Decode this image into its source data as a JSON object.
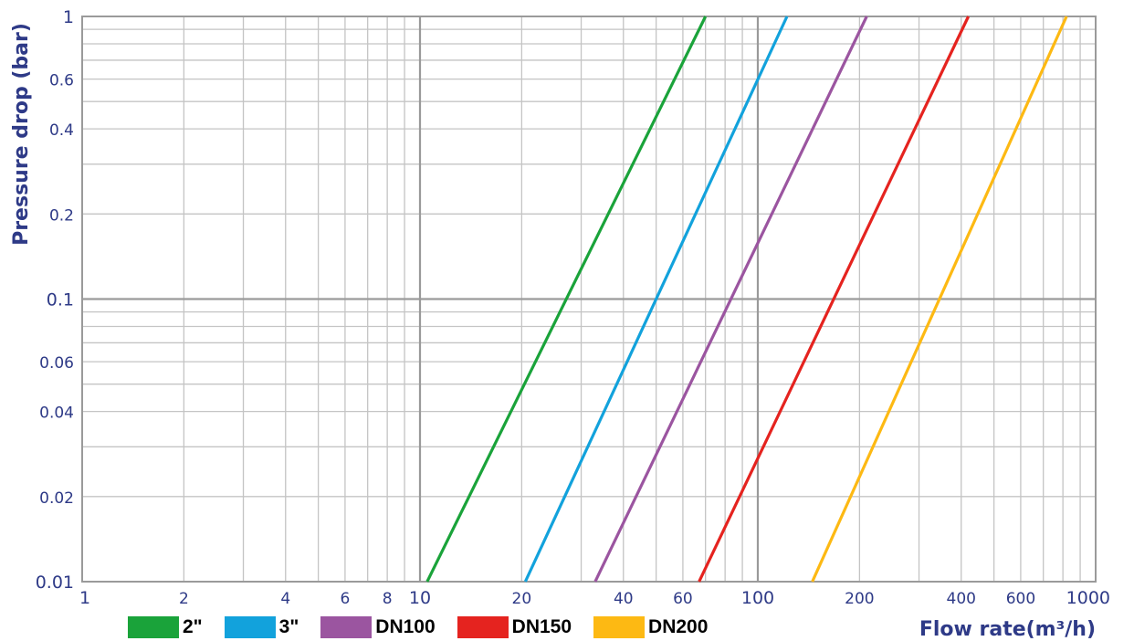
{
  "chart_data": {
    "type": "line",
    "xscale": "log",
    "yscale": "log",
    "xlim": [
      1,
      1000
    ],
    "ylim": [
      0.01,
      1
    ],
    "grid": true,
    "xlabel": "Flow rate(m³/h)",
    "ylabel": "Pressure drop (bar)",
    "x_tick_labels": [
      {
        "value": 1,
        "label": "1",
        "major": true
      },
      {
        "value": 2,
        "label": "2",
        "major": false
      },
      {
        "value": 4,
        "label": "4",
        "major": false
      },
      {
        "value": 6,
        "label": "6",
        "major": false
      },
      {
        "value": 8,
        "label": "8",
        "major": false
      },
      {
        "value": 10,
        "label": "10",
        "major": true
      },
      {
        "value": 20,
        "label": "20",
        "major": false
      },
      {
        "value": 40,
        "label": "40",
        "major": false
      },
      {
        "value": 60,
        "label": "60",
        "major": false
      },
      {
        "value": 100,
        "label": "100",
        "major": true
      },
      {
        "value": 200,
        "label": "200",
        "major": false
      },
      {
        "value": 400,
        "label": "400",
        "major": false
      },
      {
        "value": 600,
        "label": "600",
        "major": false
      },
      {
        "value": 1000,
        "label": "1000",
        "major": true
      }
    ],
    "y_tick_labels": [
      {
        "value": 1,
        "label": "1",
        "major": true
      },
      {
        "value": 0.6,
        "label": "0.6",
        "major": false
      },
      {
        "value": 0.4,
        "label": "0.4",
        "major": false
      },
      {
        "value": 0.2,
        "label": "0.2",
        "major": false
      },
      {
        "value": 0.1,
        "label": "0.1",
        "major": true
      },
      {
        "value": 0.06,
        "label": "0.06",
        "major": false
      },
      {
        "value": 0.04,
        "label": "0.04",
        "major": false
      },
      {
        "value": 0.02,
        "label": "0.02",
        "major": false
      },
      {
        "value": 0.01,
        "label": "0.01",
        "major": true
      }
    ],
    "legend_position": "bottom",
    "series": [
      {
        "name": "2\"",
        "color": "#1aa33a",
        "points": [
          [
            10.5,
            0.01
          ],
          [
            70,
            1
          ]
        ]
      },
      {
        "name": "3\"",
        "color": "#12a2dc",
        "points": [
          [
            20.5,
            0.01
          ],
          [
            122,
            1
          ]
        ]
      },
      {
        "name": "DN100",
        "color": "#9b55a0",
        "points": [
          [
            33,
            0.01
          ],
          [
            210,
            1
          ]
        ]
      },
      {
        "name": "DN150",
        "color": "#e5231f",
        "points": [
          [
            67,
            0.01
          ],
          [
            420,
            1
          ]
        ]
      },
      {
        "name": "DN200",
        "color": "#fdb913",
        "points": [
          [
            145,
            0.01
          ],
          [
            820,
            1
          ]
        ]
      }
    ]
  }
}
